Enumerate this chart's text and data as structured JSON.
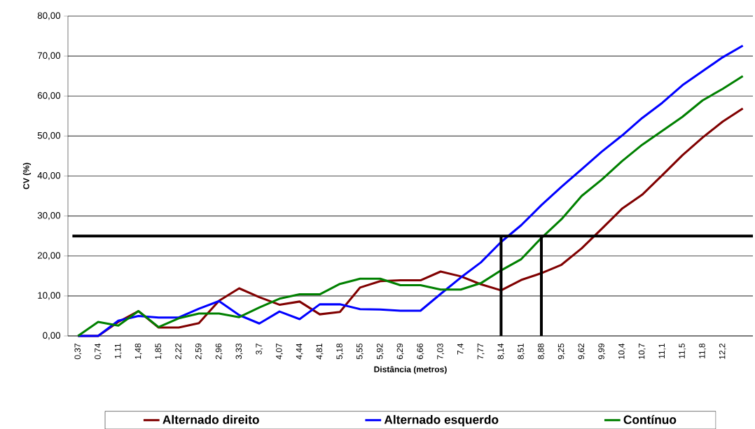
{
  "chart_data": {
    "type": "line",
    "xlabel": "Distância (metros)",
    "ylabel": "CV (%)",
    "categories": [
      "0,37",
      "0,74",
      "1,11",
      "1,48",
      "1,85",
      "2,22",
      "2,59",
      "2,96",
      "3,33",
      "3,7",
      "4,07",
      "4,44",
      "4,81",
      "5,18",
      "5,55",
      "5,92",
      "6,29",
      "6,66",
      "7,03",
      "7,4",
      "7,77",
      "8,14",
      "8,51",
      "8,88",
      "9,25",
      "9,62",
      "9,99",
      "10,4",
      "10,7",
      "11,1",
      "11,5",
      "11,8",
      "12,2",
      null
    ],
    "series": [
      {
        "name": "Alternado direito",
        "color": "#800000",
        "values": [
          0,
          0,
          3.5,
          6.2,
          2.1,
          2.1,
          3.2,
          8.8,
          11.9,
          9.7,
          7.8,
          8.6,
          5.4,
          6.0,
          12.1,
          13.7,
          13.9,
          13.9,
          16.1,
          14.9,
          12.9,
          11.4,
          14.0,
          15.7,
          17.8,
          21.9,
          26.8,
          31.8,
          35.3,
          40.2,
          45.2,
          49.6,
          53.6,
          56.9
        ]
      },
      {
        "name": "Alternado esquerdo",
        "color": "#0000ff",
        "values": [
          0,
          0,
          3.8,
          5.0,
          4.6,
          4.6,
          6.8,
          8.7,
          5.2,
          3.1,
          6.1,
          4.2,
          7.9,
          7.9,
          6.7,
          6.6,
          6.3,
          6.3,
          10.5,
          14.6,
          18.4,
          23.5,
          27.7,
          32.7,
          37.3,
          41.7,
          46.1,
          50.1,
          54.5,
          58.3,
          62.7,
          66.2,
          69.7,
          72.6
        ]
      },
      {
        "name": "Contínuo",
        "color": "#008000",
        "values": [
          0,
          3.5,
          2.6,
          6.2,
          2.2,
          4.4,
          5.6,
          5.6,
          4.7,
          7.1,
          9.3,
          10.4,
          10.4,
          13.0,
          14.3,
          14.3,
          12.7,
          12.7,
          11.6,
          11.6,
          13.2,
          16.4,
          19.2,
          24.5,
          29.2,
          35.0,
          39.1,
          43.7,
          47.8,
          51.3,
          54.8,
          58.9,
          61.8,
          65.0
        ]
      }
    ],
    "ylim": [
      0,
      80
    ],
    "yticks": [
      {
        "value": 0,
        "label": "0,00"
      },
      {
        "value": 10,
        "label": "10,00"
      },
      {
        "value": 20,
        "label": "20,00"
      },
      {
        "value": 30,
        "label": "30,00"
      },
      {
        "value": 40,
        "label": "40,00"
      },
      {
        "value": 50,
        "label": "50,00"
      },
      {
        "value": 60,
        "label": "60,00"
      },
      {
        "value": 70,
        "label": "70,00"
      },
      {
        "value": 80,
        "label": "80,00"
      }
    ],
    "ref_lines": [
      {
        "axis": "y",
        "value": 25,
        "color": "#000000"
      },
      {
        "axis": "x",
        "value": "8,14",
        "color": "#000000"
      },
      {
        "axis": "x",
        "value": "8,88",
        "color": "#000000"
      }
    ],
    "grid": "y",
    "legend": "bottom",
    "marker": "none",
    "line_style": "solid"
  }
}
